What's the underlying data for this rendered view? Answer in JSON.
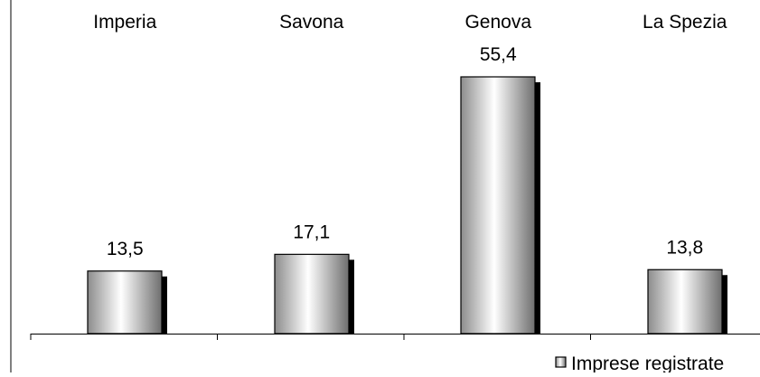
{
  "chart_data": {
    "type": "bar",
    "categories": [
      "Imperia",
      "Savona",
      "Genova",
      "La Spezia"
    ],
    "series": [
      {
        "name": "Imprese registrate",
        "values": [
          13.5,
          17.1,
          55.4,
          13.8
        ]
      }
    ],
    "value_labels": [
      "13,5",
      "17,1",
      "55,4",
      "13,8"
    ],
    "category_position": "top",
    "ylim": [
      0,
      62
    ],
    "grid": false,
    "legend": {
      "position": "bottom-right",
      "label": "Imprese registrate"
    },
    "colors": {
      "bar_edge": "#000000",
      "bar_shadow": "#000000",
      "bar_light": "#ffffff",
      "bar_dark": "#808080"
    }
  }
}
